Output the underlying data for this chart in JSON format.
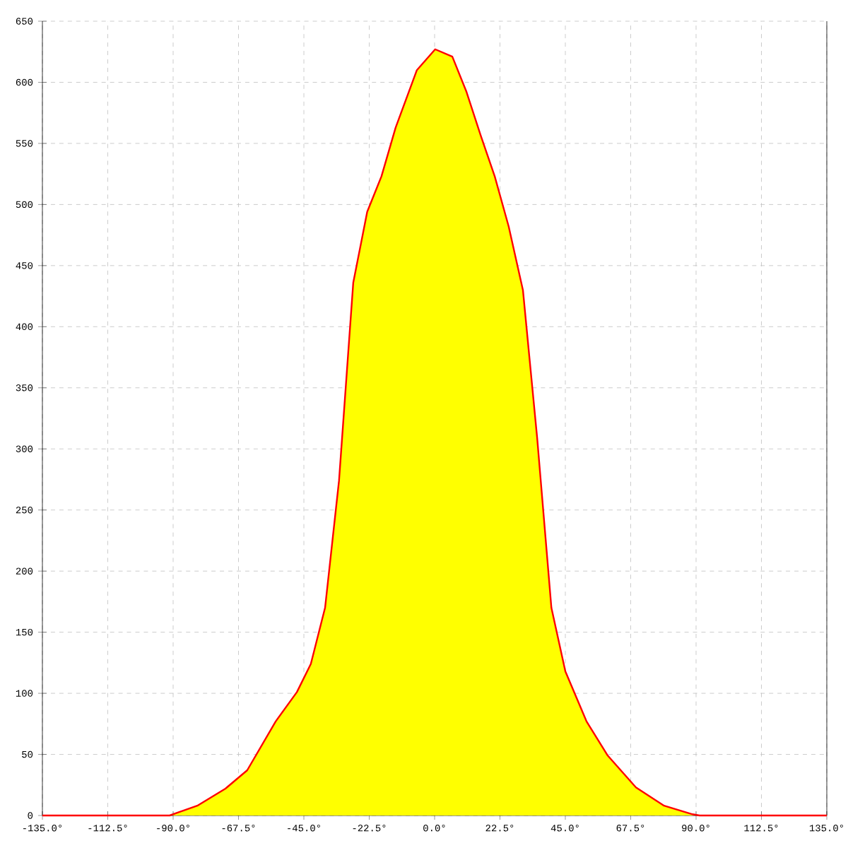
{
  "chart_data": {
    "type": "area",
    "x": [
      -135,
      -91.2,
      -81.7,
      -72,
      -64.5,
      -54.7,
      -47.4,
      -42.6,
      -37.7,
      -32.9,
      -28,
      -23.2,
      -18.3,
      -13.4,
      -6.1,
      0.2,
      6.1,
      11,
      15.8,
      20.7,
      25.5,
      30.4,
      35.3,
      40.2,
      45,
      52.3,
      59.6,
      69.3,
      79,
      88.8,
      91.2,
      135
    ],
    "series": [
      {
        "color": "#ffff00",
        "x": [
          -91.2,
          -81.7,
          -72,
          -64.5,
          -54.7,
          -47.4,
          -42.6,
          -37.7,
          -32.9,
          -28,
          -23.2,
          -18.3,
          -13.4,
          -6.1,
          0.2,
          6.1,
          11,
          15.8,
          20.7,
          25.5,
          30.4,
          35.3,
          40.2,
          45,
          52.3,
          59.6,
          69.3,
          79,
          88.8,
          91.2
        ],
        "values": [
          0,
          8,
          22,
          37,
          77,
          101,
          124,
          170,
          274,
          436,
          494,
          523,
          563,
          610,
          627,
          621,
          592,
          557,
          523,
          482,
          430,
          309,
          170,
          118,
          77,
          49,
          23,
          8,
          1,
          0
        ]
      },
      {
        "type": "line",
        "color": "#ff0000",
        "values": [
          0,
          0,
          8,
          22,
          37,
          77,
          101,
          124,
          170,
          274,
          436,
          494,
          523,
          563,
          610,
          627,
          621,
          592,
          557,
          523,
          482,
          430,
          309,
          170,
          118,
          77,
          49,
          23,
          8,
          1,
          0,
          0
        ]
      }
    ],
    "xlim": [
      -135,
      135
    ],
    "ylim": [
      0,
      650
    ],
    "xticks": [
      {
        "value": -135,
        "label": "-135.0°"
      },
      {
        "value": -112.5,
        "label": "-112.5°"
      },
      {
        "value": -90,
        "label": "-90.0°"
      },
      {
        "value": -67.5,
        "label": "-67.5°"
      },
      {
        "value": -45,
        "label": "-45.0°"
      },
      {
        "value": -22.5,
        "label": "-22.5°"
      },
      {
        "value": 0,
        "label": "0.0°"
      },
      {
        "value": 22.5,
        "label": "22.5°"
      },
      {
        "value": 45,
        "label": "45.0°"
      },
      {
        "value": 67.5,
        "label": "67.5°"
      },
      {
        "value": 90,
        "label": "90.0°"
      },
      {
        "value": 112.5,
        "label": "112.5°"
      },
      {
        "value": 135,
        "label": "135.0°"
      }
    ],
    "yticks": [
      0,
      50,
      100,
      150,
      200,
      250,
      300,
      350,
      400,
      450,
      500,
      550,
      600,
      650
    ],
    "grid": true,
    "marker": "none",
    "line_style": "solid"
  }
}
